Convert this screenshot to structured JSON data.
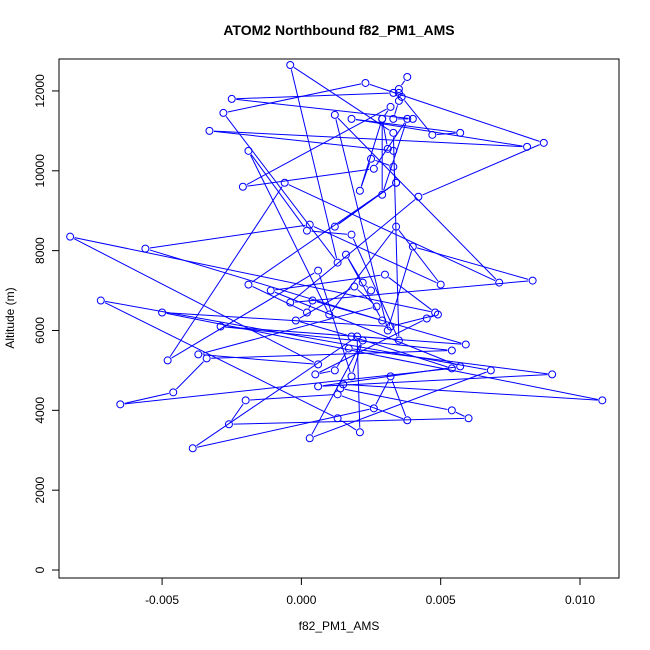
{
  "chart_data": {
    "type": "line",
    "title": "ATOM2 Northbound f82_PM1_AMS",
    "xlabel": "f82_PM1_AMS",
    "ylabel": "Altitude (m)",
    "xlim": [
      -0.0087,
      0.0114
    ],
    "ylim": [
      -200,
      12800
    ],
    "xticks": [
      -0.005,
      0.0,
      0.005,
      0.01
    ],
    "xtick_labels": [
      "-0.005",
      "0.000",
      "0.005",
      "0.010"
    ],
    "yticks": [
      0,
      2000,
      4000,
      6000,
      8000,
      10000,
      12000
    ],
    "ytick_labels": [
      "0",
      "2000",
      "4000",
      "6000",
      "8000",
      "10000",
      "12000"
    ],
    "grid": false,
    "legend": "none",
    "series_color": "#0000ff",
    "series": [
      {
        "markers": "open-circle",
        "x": [
          0.0038,
          0.0035,
          0.0035,
          0.0035,
          0.0033,
          0.004,
          -0.0025,
          0.0033,
          0.0036,
          0.0047,
          0.0057,
          0.0018,
          0.0081,
          -0.0033,
          0.0033,
          0.0031,
          0.0029,
          0.0032,
          -0.0021,
          0.0026,
          0.0038,
          0.0029,
          0.0029,
          0.0021,
          0.0025,
          0.0033,
          0.0034,
          0.0012,
          0.0034,
          -0.0019,
          0.0002,
          0.0004,
          0.0059,
          -0.0029,
          0.0054,
          -0.0034,
          -0.0046,
          -0.0065,
          0.0054,
          0.0018,
          -0.0002,
          0.0019,
          0.0027,
          -0.0037,
          0.0006,
          -0.0083,
          0.0048,
          0.003,
          -0.0011,
          0.0057,
          0.0006,
          0.009,
          0.0017,
          0.0012,
          0.0005,
          0.0045,
          0.0049,
          0.0032,
          -0.005,
          0.0108,
          0.0015,
          0.0014,
          0.0054,
          0.006,
          -0.0026,
          -0.002,
          0.0013,
          0.0038,
          0.0032,
          0.0026,
          -0.0039,
          0.002,
          0.0021,
          0.0013,
          -0.0072,
          0.0068,
          0.0003,
          0.0022,
          0.0018,
          0.0006,
          -0.0048,
          -0.0006,
          0.0071,
          0.0012,
          0.0031,
          0.004,
          0.0083,
          -0.0004,
          0.0042,
          0.0087,
          0.0023,
          -0.0028,
          0.0013,
          -0.0004,
          0.0033,
          0.0035,
          0.0018,
          0.0002,
          -0.0019,
          0.001,
          0.0034,
          0.005,
          0.0003,
          -0.0056,
          0.0029,
          0.0016,
          0.0022,
          0.0025
        ],
        "y": [
          12350,
          12050,
          11950,
          11750,
          11300,
          11300,
          11800,
          11950,
          11850,
          10900,
          10950,
          11300,
          10600,
          11000,
          10500,
          10550,
          11300,
          11600,
          9600,
          10050,
          11300,
          9400,
          11300,
          9500,
          10300,
          10100,
          9700,
          8600,
          9700,
          7150,
          6450,
          6750,
          5650,
          6100,
          5500,
          5300,
          4450,
          4150,
          5050,
          5850,
          6250,
          7100,
          6600,
          5400,
          5150,
          8350,
          6450,
          7400,
          7000,
          5100,
          4600,
          4900,
          5550,
          5000,
          4900,
          6300,
          6400,
          6100,
          6450,
          4250,
          4650,
          4550,
          4000,
          3800,
          3650,
          4250,
          4400,
          3750,
          4850,
          4050,
          3050,
          5850,
          3450,
          3800,
          6750,
          5000,
          3300,
          5750,
          4850,
          7500,
          5250,
          9700,
          7200,
          11400,
          6000,
          8100,
          7250,
          6700,
          9350,
          10700,
          12200,
          11450,
          7700,
          12650,
          10950,
          5750,
          8400,
          8500,
          10500,
          6400,
          8600,
          7150,
          8650,
          8050,
          6250,
          7900,
          7200,
          7000
        ]
      }
    ]
  }
}
